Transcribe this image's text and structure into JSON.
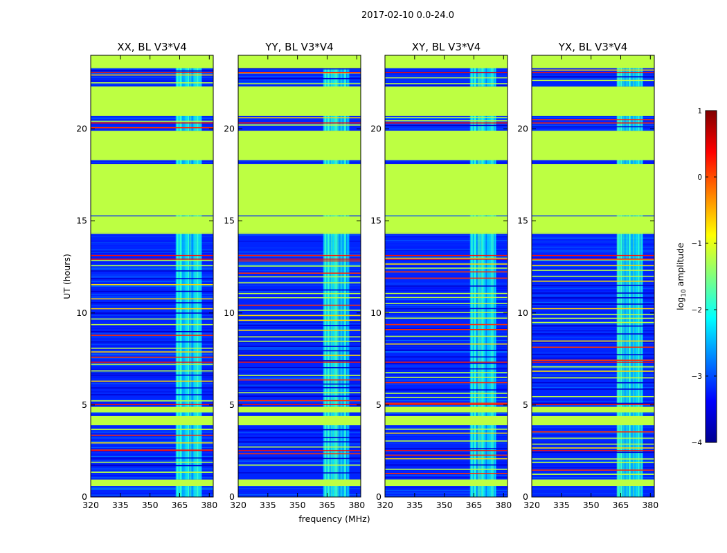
{
  "chart_data": {
    "type": "heatmap",
    "suptitle": "2017-02-10 0.0-24.0",
    "colormap": "jet",
    "panels": [
      {
        "title": "XX, BL V3*V4",
        "polarization": "XX",
        "baseline": "V3*V4",
        "xlim": [
          320,
          382
        ],
        "ylim": [
          0,
          24
        ]
      },
      {
        "title": "YY, BL V3*V4",
        "polarization": "YY",
        "baseline": "V3*V4",
        "xlim": [
          320,
          382
        ],
        "ylim": [
          0,
          24
        ]
      },
      {
        "title": "XY, BL V3*V4",
        "polarization": "XY",
        "baseline": "V3*V4",
        "xlim": [
          320,
          382
        ],
        "ylim": [
          0,
          24
        ]
      },
      {
        "title": "YX, BL V3*V4",
        "polarization": "YX",
        "baseline": "V3*V4",
        "xlim": [
          320,
          382
        ],
        "ylim": [
          0,
          24
        ]
      }
    ],
    "xticks": [
      320,
      335,
      350,
      365,
      380
    ],
    "yticks": [
      0,
      5,
      10,
      15,
      20
    ],
    "xlabel": "frequency (MHz)",
    "ylabel": "UT (hours)",
    "colorbar": {
      "label_main": "log",
      "label_sub": "10",
      "label_tail": " amplitude",
      "range": [
        -4,
        1
      ],
      "ticks": [
        {
          "value": 1,
          "label": "1"
        },
        {
          "value": 0,
          "label": "0"
        },
        {
          "value": -1,
          "label": "−1"
        },
        {
          "value": -2,
          "label": "−2"
        },
        {
          "value": -3,
          "label": "−3"
        },
        {
          "value": -4,
          "label": "−4"
        }
      ]
    },
    "flagged_blocks_ut": [
      [
        0.6,
        0.95
      ],
      [
        3.9,
        4.4
      ],
      [
        4.6,
        4.9
      ],
      [
        14.3,
        14.35
      ],
      [
        14.35,
        15.25
      ],
      [
        15.3,
        18.1
      ],
      [
        18.3,
        19.9
      ],
      [
        20.7,
        22.3
      ],
      [
        23.3,
        24.0
      ]
    ],
    "flag_value_log": -1.2,
    "background_value_log": -3.2,
    "rfi_band_mhz": [
      363,
      376
    ],
    "rfi_value_log": -2.2
  }
}
